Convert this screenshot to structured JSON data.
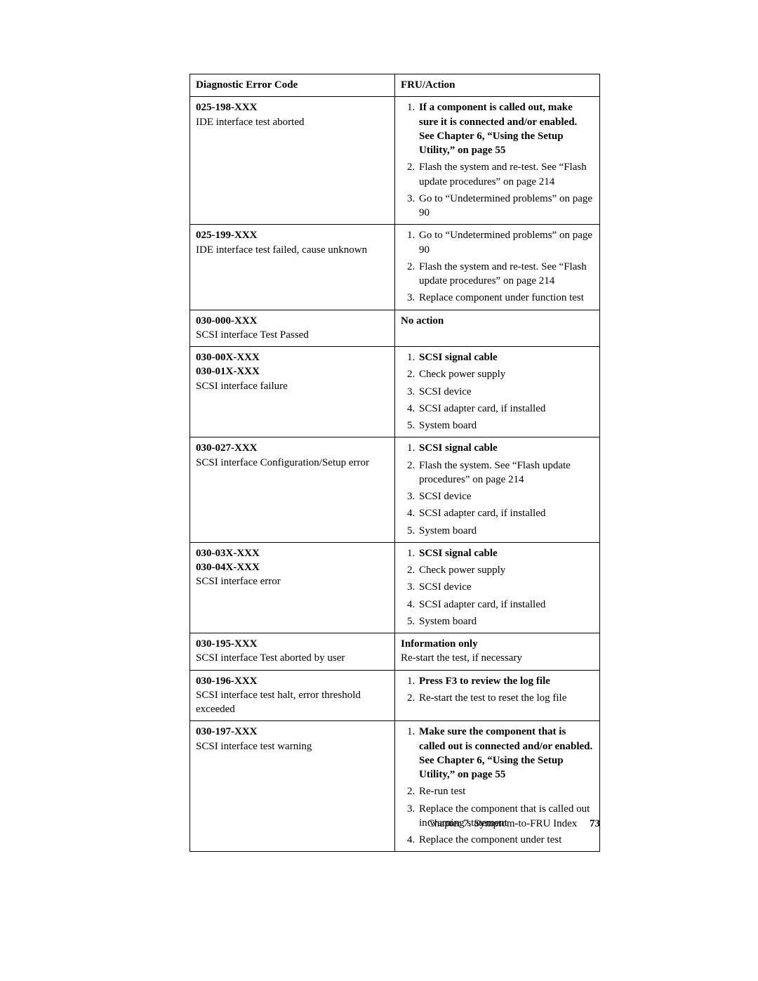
{
  "header": {
    "col1": "Diagnostic Error Code",
    "col2": "FRU/Action"
  },
  "rows": [
    {
      "codes": [
        "025-198-XXX"
      ],
      "desc": "IDE interface test aborted",
      "action_type": "list",
      "items": [
        {
          "bold": true,
          "text": "If a component is called out, make sure it is connected and/or enabled. See Chapter 6, “Using the Setup Utility,” on page 55"
        },
        {
          "bold": false,
          "text": "Flash the system and re-test. See “Flash update procedures” on page 214"
        },
        {
          "bold": false,
          "text": "Go to “Undetermined problems” on page 90"
        }
      ]
    },
    {
      "codes": [
        "025-199-XXX"
      ],
      "desc": "IDE interface test failed, cause unknown",
      "action_type": "list",
      "items": [
        {
          "bold": false,
          "text": "Go to “Undetermined problems” on page 90"
        },
        {
          "bold": false,
          "text": "Flash the system and re-test. See “Flash update procedures” on page 214"
        },
        {
          "bold": false,
          "text": "Replace component under function test"
        }
      ]
    },
    {
      "codes": [
        "030-000-XXX"
      ],
      "desc": "SCSI interface Test Passed",
      "action_type": "text",
      "text": "No action",
      "sub": ""
    },
    {
      "codes": [
        "030-00X-XXX",
        "030-01X-XXX"
      ],
      "desc": "SCSI interface failure",
      "action_type": "list",
      "items": [
        {
          "bold": true,
          "text": "SCSI signal cable"
        },
        {
          "bold": false,
          "text": "Check power supply"
        },
        {
          "bold": false,
          "text": "SCSI device"
        },
        {
          "bold": false,
          "text": "SCSI adapter card, if installed"
        },
        {
          "bold": false,
          "text": "System board"
        }
      ]
    },
    {
      "codes": [
        "030-027-XXX"
      ],
      "desc": "SCSI interface Configuration/Setup error",
      "action_type": "list",
      "items": [
        {
          "bold": true,
          "text": "SCSI signal cable"
        },
        {
          "bold": false,
          "text": "Flash the system. See “Flash update procedures” on page 214"
        },
        {
          "bold": false,
          "text": "SCSI device"
        },
        {
          "bold": false,
          "text": "SCSI adapter card, if installed"
        },
        {
          "bold": false,
          "text": "System board"
        }
      ]
    },
    {
      "codes": [
        "030-03X-XXX",
        "030-04X-XXX"
      ],
      "desc": "SCSI interface error",
      "action_type": "list",
      "items": [
        {
          "bold": true,
          "text": "SCSI signal cable"
        },
        {
          "bold": false,
          "text": "Check power supply"
        },
        {
          "bold": false,
          "text": "SCSI device"
        },
        {
          "bold": false,
          "text": "SCSI adapter card, if installed"
        },
        {
          "bold": false,
          "text": "System board"
        }
      ]
    },
    {
      "codes": [
        "030-195-XXX"
      ],
      "desc": "SCSI interface Test aborted by user",
      "action_type": "text",
      "text": "Information only",
      "sub": "Re-start the test, if necessary"
    },
    {
      "codes": [
        "030-196-XXX"
      ],
      "desc": "SCSI interface test halt, error threshold exceeded",
      "action_type": "list",
      "items": [
        {
          "bold": true,
          "text": "Press F3 to review the log file"
        },
        {
          "bold": false,
          "text": "Re-start the test to reset the log file"
        }
      ]
    },
    {
      "codes": [
        "030-197-XXX"
      ],
      "desc": "SCSI interface test warning",
      "action_type": "list",
      "items": [
        {
          "bold": true,
          "text": "Make sure the component that is called out is connected and/or enabled. See Chapter 6, “Using the Setup Utility,” on page 55"
        },
        {
          "bold": false,
          "text": "Re-run test"
        },
        {
          "bold": false,
          "text": "Replace the component that is called out in warning statement"
        },
        {
          "bold": false,
          "text": "Replace the component under test"
        }
      ]
    }
  ],
  "footer": {
    "chapter": "Chapter 7. Symptom-to-FRU Index",
    "page": "73"
  }
}
